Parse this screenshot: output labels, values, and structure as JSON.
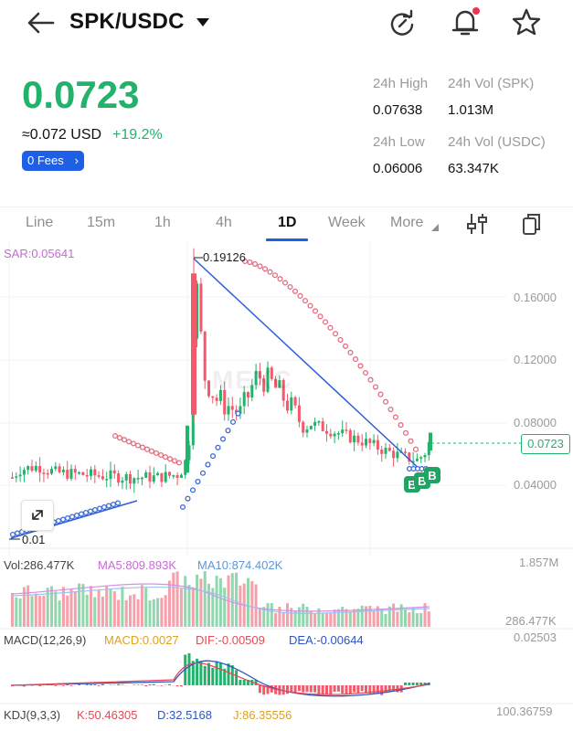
{
  "header": {
    "pair": "SPK/USDC",
    "icons": [
      "back-arrow-icon",
      "caret-down-icon",
      "refresh-icon",
      "bell-icon",
      "star-icon"
    ]
  },
  "ticker": {
    "price": "0.0723",
    "approx": "≈0.072 USD",
    "change": "+19.2%",
    "fees": "0 Fees",
    "high_label": "24h High",
    "high": "0.07638",
    "low_label": "24h Low",
    "low": "0.06006",
    "vol_spk_label": "24h Vol (SPK)",
    "vol_spk": "1.013M",
    "vol_usdc_label": "24h Vol  (USDC)",
    "vol_usdc": "63.347K"
  },
  "tabs": [
    "Line",
    "15m",
    "1h",
    "4h",
    "1D",
    "Week",
    "More"
  ],
  "active_tab": "1D",
  "chart": {
    "sar_label": "SAR:0.05641",
    "high_marker": "0.19126",
    "low_marker": "0.01",
    "current_price": "0.0723",
    "watermark": "MEXC",
    "y_ticks": [
      "0.16000",
      "0.12000",
      "0.08000",
      "0.04000"
    ],
    "vol": "Vol:286.477K",
    "ma5": "MA5:809.893K",
    "ma10": "MA10:874.402K",
    "vol_top": "1.857M",
    "vol_cur": "286.477K",
    "macd_params": "MACD(12,26,9)",
    "macd": "MACD:0.0027",
    "dif": "DIF:-0.00509",
    "dea": "DEA:-0.00644",
    "macd_top": "0.02503",
    "kdj_params": "KDJ(9,3,3)",
    "k": "K:50.46305",
    "d": "D:32.5168",
    "j": "J:86.35556",
    "kdj_top": "100.36759",
    "markers": [
      "B",
      "B",
      "B"
    ]
  },
  "colors": {
    "up": "#21b26b",
    "down": "#f2596b",
    "accent": "#1f5fe6",
    "sar": "#ee7c8f",
    "sar_blue": "#3b69d6"
  }
}
